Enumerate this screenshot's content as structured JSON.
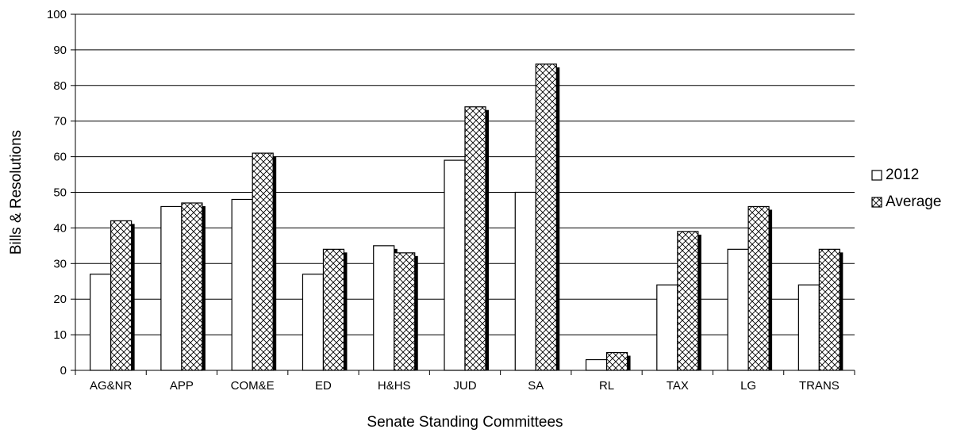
{
  "chart_data": {
    "type": "bar",
    "title": "",
    "xlabel": "Senate Standing Committees",
    "ylabel": "Bills & Resolutions",
    "ylim": [
      0,
      100
    ],
    "yticks": [
      0,
      10,
      20,
      30,
      40,
      50,
      60,
      70,
      80,
      90,
      100
    ],
    "grid": "horizontal",
    "legend_position": "right",
    "categories": [
      "AG&NR",
      "APP",
      "COM&E",
      "ED",
      "H&HS",
      "JUD",
      "SA",
      "RL",
      "TAX",
      "LG",
      "TRANS"
    ],
    "series": [
      {
        "name": "2012",
        "pattern": "solid-white",
        "values": [
          27,
          46,
          48,
          27,
          35,
          59,
          50,
          3,
          24,
          34,
          24
        ]
      },
      {
        "name": "Average",
        "pattern": "crosshatch",
        "values": [
          42,
          47,
          61,
          34,
          33,
          74,
          86,
          5,
          39,
          46,
          34
        ]
      }
    ],
    "colors": {
      "bar_fill": "#ffffff",
      "bar_stroke": "#000000",
      "shadow": "#000000",
      "grid": "#000000"
    }
  }
}
